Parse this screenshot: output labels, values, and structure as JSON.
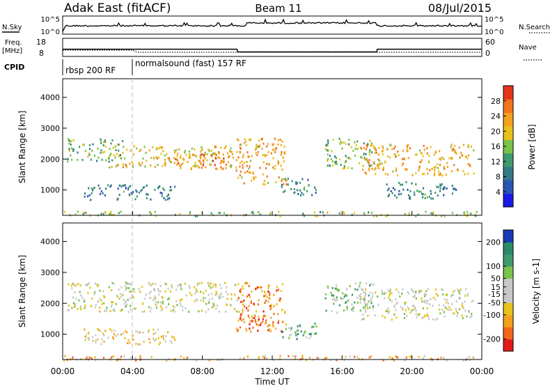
{
  "header": {
    "title": "Adak East (fitACF)",
    "beam": "Beam 11",
    "date": "08/Jul/2015"
  },
  "top_panels": {
    "nsky_label": "N.Sky",
    "nsky_ticks": [
      "10^5",
      "10^0"
    ],
    "nsearch_label": "N.Search",
    "nsearch_ticks": [
      "10^5",
      "10^0"
    ],
    "freq_label": "Freq.",
    "freq_unit": "[MHz]",
    "freq_ticks": [
      "18",
      "8"
    ],
    "nave_label": "Nave",
    "nave_ticks": [
      "60",
      "0"
    ],
    "cpid_label": "CPID",
    "cpid_segments": [
      {
        "label": "rbsp 200 RF",
        "start_hour": 0,
        "end_hour": 4
      },
      {
        "label": "normalsound (fast) 157 RF",
        "start_hour": 4,
        "end_hour": 24
      }
    ],
    "freq_steps": [
      {
        "start_hour": 0,
        "end_hour": 10,
        "value_mhz": 12
      },
      {
        "start_hour": 10,
        "end_hour": 18,
        "value_mhz": 10.5
      },
      {
        "start_hour": 18,
        "end_hour": 24,
        "value_mhz": 12
      }
    ]
  },
  "x_axis": {
    "label": "Time UT",
    "ticks": [
      "00:00",
      "04:00",
      "08:00",
      "12:00",
      "16:00",
      "20:00",
      "00:00"
    ],
    "tick_hours": [
      0,
      4,
      8,
      12,
      16,
      20,
      24
    ],
    "range": [
      0,
      24
    ]
  },
  "chart_data": [
    {
      "type": "heatmap",
      "parameter": "Power",
      "ylabel": "Slant Range [km]",
      "yticks": [
        "4000",
        "3000",
        "2000",
        "1000"
      ],
      "ylim": [
        180,
        4600
      ],
      "colorbar_label": "Power [dB]",
      "colorbar_ticks": [
        "28",
        "24",
        "20",
        "16",
        "12",
        "8",
        "4"
      ],
      "colorbar_range": [
        0,
        32
      ],
      "colors": [
        "#1a1ae6",
        "#2a55b5",
        "#347a86",
        "#3e9a6c",
        "#7cc24a",
        "#e6c21a",
        "#f4a11e",
        "#f2741c",
        "#e5341a"
      ],
      "patches": [
        {
          "t0": 0.2,
          "t1": 3.5,
          "r0": 1950,
          "r1": 2700,
          "level": 0.45
        },
        {
          "t0": 2.6,
          "t1": 10.0,
          "r0": 1750,
          "r1": 2450,
          "level": 0.62
        },
        {
          "t0": 6.0,
          "t1": 9.8,
          "r0": 1700,
          "r1": 2200,
          "level": 0.8
        },
        {
          "t0": 9.9,
          "t1": 12.8,
          "r0": 1200,
          "r1": 2700,
          "level": 0.7
        },
        {
          "t0": 1.2,
          "t1": 6.5,
          "r0": 700,
          "r1": 1200,
          "level": 0.28
        },
        {
          "t0": 12.5,
          "t1": 14.5,
          "r0": 850,
          "r1": 1400,
          "level": 0.35
        },
        {
          "t0": 15.0,
          "t1": 17.8,
          "r0": 1700,
          "r1": 2700,
          "level": 0.45
        },
        {
          "t0": 17.0,
          "t1": 23.5,
          "r0": 1500,
          "r1": 2500,
          "level": 0.7
        },
        {
          "t0": 18.5,
          "t1": 22.5,
          "r0": 750,
          "r1": 1300,
          "level": 0.3
        },
        {
          "t0": 0.0,
          "t1": 24.0,
          "r0": 180,
          "r1": 330,
          "level": 0.5
        }
      ]
    },
    {
      "type": "heatmap",
      "parameter": "Velocity",
      "ylabel": "Slant Range [km]",
      "yticks": [
        "4000",
        "3000",
        "2000",
        "1000"
      ],
      "ylim": [
        180,
        4600
      ],
      "colorbar_label": "Velocity [m s-1]",
      "colorbar_ticks": [
        "200",
        "100",
        "50",
        "15",
        "-15",
        "-50",
        "-100",
        "-200"
      ],
      "colorbar_range": [
        -250,
        250
      ],
      "colors": [
        "#e51a1a",
        "#f2681a",
        "#f4a11e",
        "#e6c21a",
        "#c8c8c8",
        "#c8c8c8",
        "#7cc24a",
        "#3e9a6c",
        "#2a8a6a",
        "#1a3ab5"
      ],
      "patches": [
        {
          "t0": 0.2,
          "t1": 10.0,
          "r0": 1750,
          "r1": 2700,
          "level": 0.48
        },
        {
          "t0": 9.9,
          "t1": 12.8,
          "r0": 1100,
          "r1": 2700,
          "level": 0.22
        },
        {
          "t0": 12.5,
          "t1": 14.5,
          "r0": 850,
          "r1": 1400,
          "level": 0.68
        },
        {
          "t0": 15.0,
          "t1": 17.8,
          "r0": 1700,
          "r1": 2700,
          "level": 0.62
        },
        {
          "t0": 17.0,
          "t1": 23.5,
          "r0": 1500,
          "r1": 2500,
          "level": 0.5
        },
        {
          "t0": 1.2,
          "t1": 6.5,
          "r0": 700,
          "r1": 1200,
          "level": 0.4
        },
        {
          "t0": 0.0,
          "t1": 24.0,
          "r0": 180,
          "r1": 330,
          "level": 0.3
        }
      ]
    }
  ]
}
